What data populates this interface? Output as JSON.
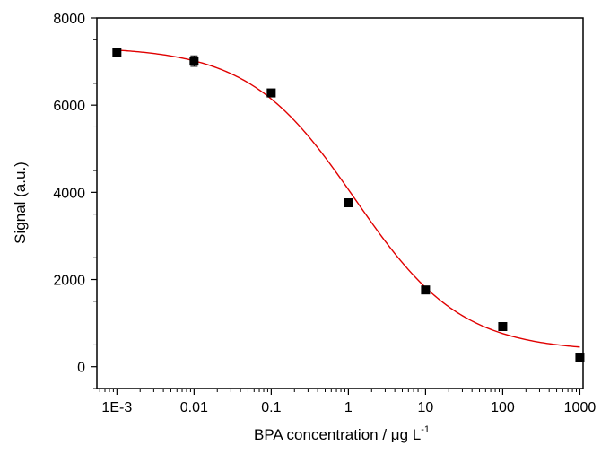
{
  "chart_data": {
    "type": "scatter",
    "xlabel": "BPA concentration / μg L",
    "xlabel_sup": "-1",
    "ylabel": "Signal (a.u.)",
    "xscale": "log",
    "xlim": [
      0.00055,
      1100
    ],
    "ylim": [
      -500,
      8000
    ],
    "grid": false,
    "legend": "none",
    "x_ticks": [
      {
        "value": 0.001,
        "label": "1E-3"
      },
      {
        "value": 0.01,
        "label": "0.01"
      },
      {
        "value": 0.1,
        "label": "0.1"
      },
      {
        "value": 1,
        "label": "1"
      },
      {
        "value": 10,
        "label": "10"
      },
      {
        "value": 100,
        "label": "100"
      },
      {
        "value": 1000,
        "label": "1000"
      }
    ],
    "y_ticks": [
      {
        "value": 0,
        "label": "0"
      },
      {
        "value": 2000,
        "label": "2000"
      },
      {
        "value": 4000,
        "label": "4000"
      },
      {
        "value": 6000,
        "label": "6000"
      },
      {
        "value": 8000,
        "label": "8000"
      }
    ],
    "series": [
      {
        "marker": "square",
        "color": "#000000",
        "points": [
          {
            "x": 0.001,
            "y": 7200,
            "err": 0
          },
          {
            "x": 0.01,
            "y": 7010,
            "err": 120
          },
          {
            "x": 0.1,
            "y": 6280,
            "err": 0
          },
          {
            "x": 1,
            "y": 3760,
            "err": 0
          },
          {
            "x": 10,
            "y": 1760,
            "err": 0
          },
          {
            "x": 100,
            "y": 920,
            "err": 0
          },
          {
            "x": 1000,
            "y": 220,
            "err": 0
          }
        ]
      }
    ],
    "fit": {
      "model": "four-parameter logistic",
      "color": "#e00000",
      "top": 7340,
      "bottom": 350,
      "ic50": 1.22,
      "hill": 0.63
    }
  }
}
